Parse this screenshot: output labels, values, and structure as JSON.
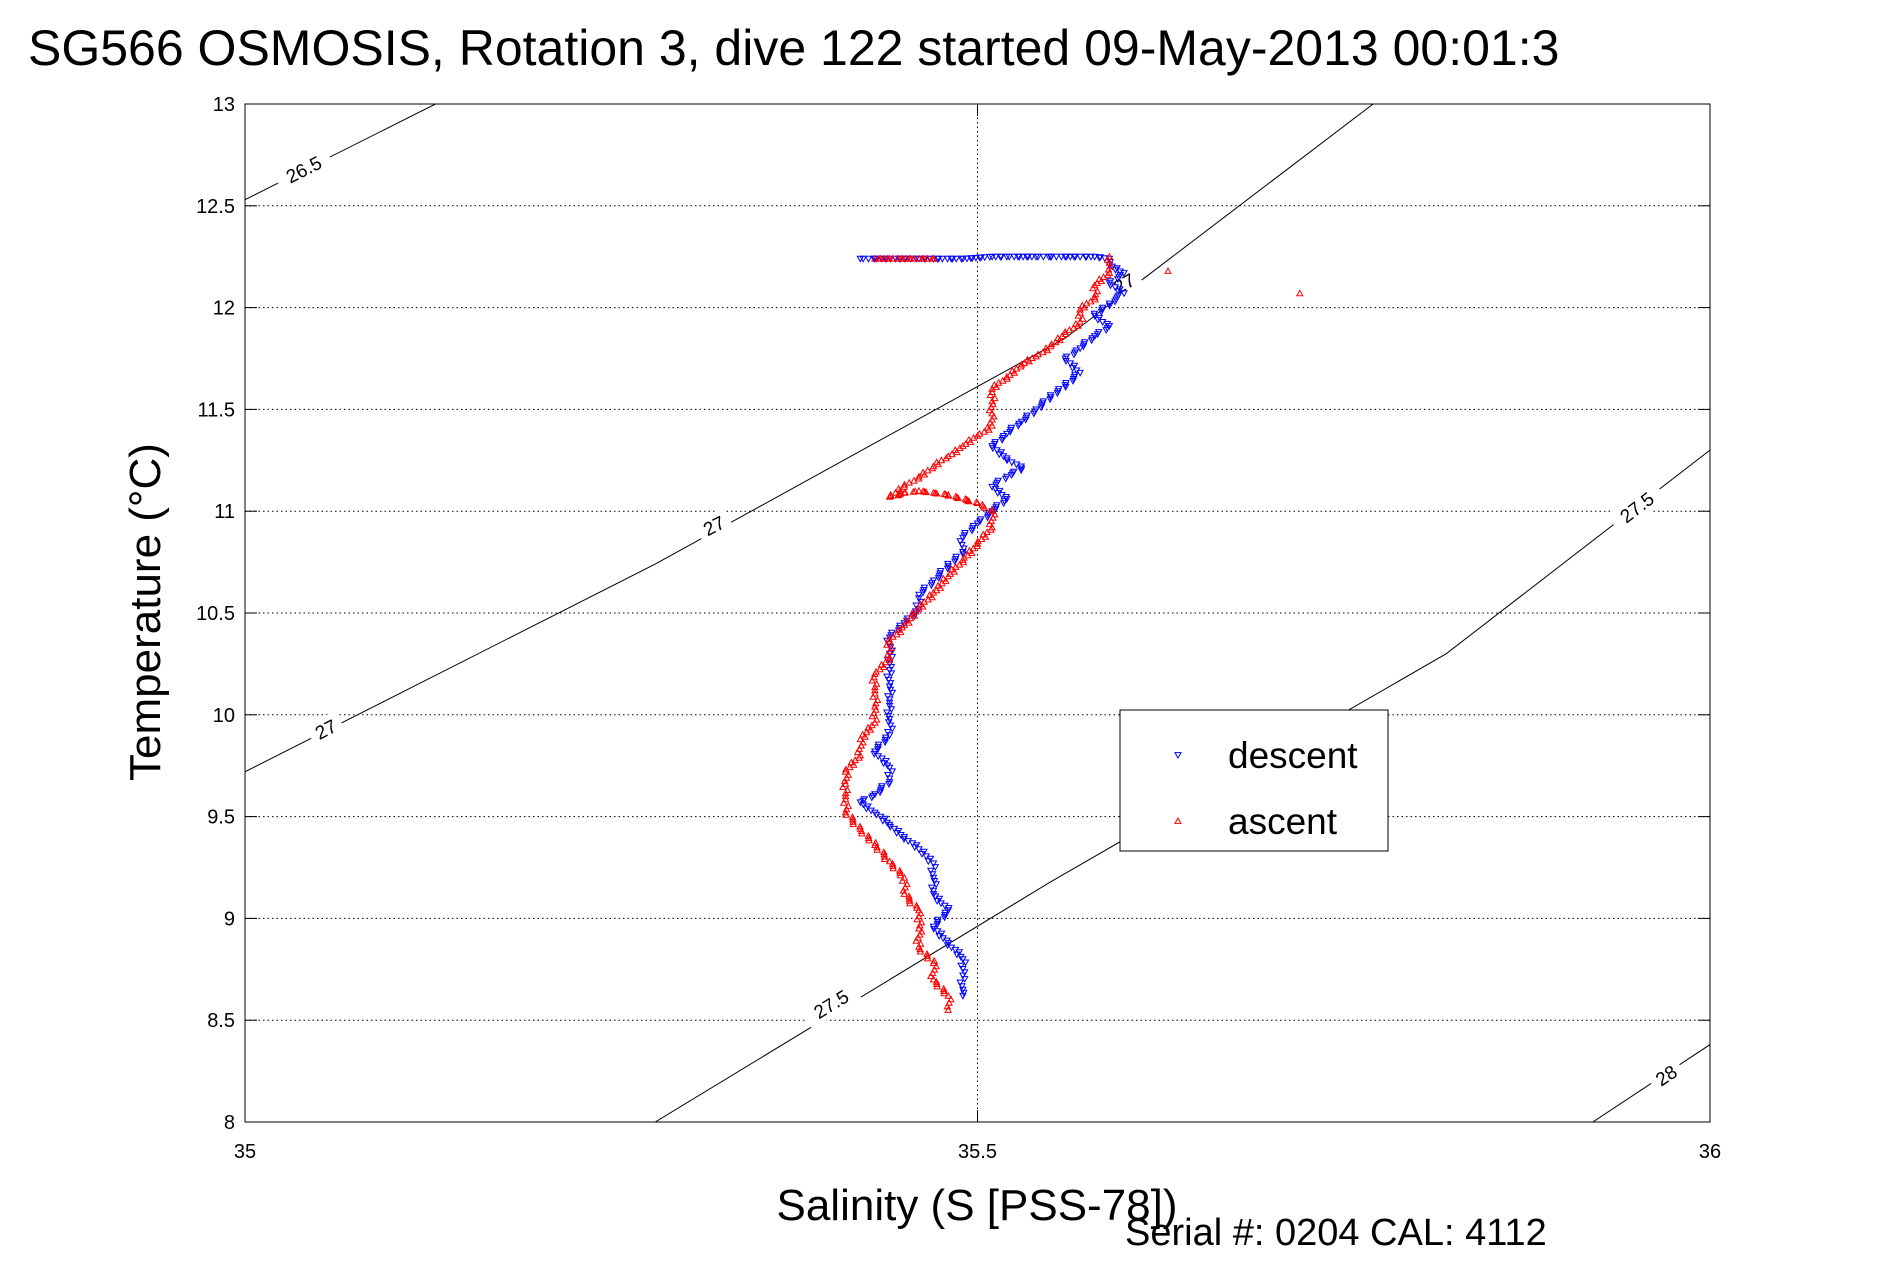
{
  "chart_data": {
    "type": "scatter",
    "title": "SG566 OSMOSIS, Rotation 3, dive 122 started 09-May-2013 00:01:3",
    "xlabel": "Salinity (S [PSS-78])",
    "ylabel": "Temperature (°C)",
    "footer": "Serial #: 0204  CAL: 4112",
    "xlim": [
      35,
      36
    ],
    "ylim": [
      8,
      13
    ],
    "x_ticks": [
      35,
      35.5,
      36
    ],
    "x_tick_labels": [
      "35",
      "35.5",
      "36"
    ],
    "y_ticks": [
      8,
      8.5,
      9,
      9.5,
      10,
      10.5,
      11,
      11.5,
      12,
      12.5,
      13
    ],
    "y_tick_labels": [
      "8",
      "8.5",
      "9",
      "9.5",
      "10",
      "10.5",
      "11",
      "11.5",
      "12",
      "12.5",
      "13"
    ],
    "grid": true,
    "legend_position": "center-right",
    "legend": [
      {
        "label": "descent",
        "marker": "triangle-down",
        "color": "#0000ff"
      },
      {
        "label": "ascent",
        "marker": "triangle-up",
        "color": "#ff0000"
      }
    ],
    "density_contours": [
      {
        "level": 26.5,
        "label": "26.5",
        "points": [
          [
            35.0,
            12.53
          ],
          [
            35.13,
            13.0
          ]
        ],
        "label_at": [
          [
            35.04,
            12.68
          ]
        ]
      },
      {
        "level": 27,
        "label": "27",
        "points": [
          [
            35.0,
            9.72
          ],
          [
            35.28,
            10.74
          ],
          [
            35.56,
            11.85
          ],
          [
            35.77,
            13.0
          ]
        ],
        "label_at": [
          [
            35.055,
            9.93
          ],
          [
            35.32,
            10.93
          ],
          [
            35.6,
            12.12
          ]
        ]
      },
      {
        "level": 27.5,
        "label": "27.5",
        "points": [
          [
            35.28,
            8.0
          ],
          [
            35.55,
            9.18
          ],
          [
            35.82,
            10.3
          ],
          [
            36.0,
            11.3
          ]
        ],
        "label_at": [
          [
            35.4,
            8.58
          ],
          [
            35.95,
            11.02
          ]
        ]
      },
      {
        "level": 28,
        "label": "28",
        "points": [
          [
            35.92,
            8.0
          ],
          [
            36.0,
            8.38
          ]
        ],
        "label_at": [
          [
            35.97,
            8.23
          ]
        ]
      }
    ],
    "series": [
      {
        "name": "descent",
        "color": "#0000ff",
        "marker": "triangle-down",
        "points": [
          [
            35.42,
            12.24
          ],
          [
            35.43,
            12.24
          ],
          [
            35.45,
            12.24
          ],
          [
            35.46,
            12.24
          ],
          [
            35.47,
            12.24
          ],
          [
            35.49,
            12.24
          ],
          [
            35.51,
            12.25
          ],
          [
            35.52,
            12.25
          ],
          [
            35.54,
            12.25
          ],
          [
            35.55,
            12.25
          ],
          [
            35.57,
            12.25
          ],
          [
            35.58,
            12.25
          ],
          [
            35.59,
            12.24
          ],
          [
            35.59,
            12.21
          ],
          [
            35.6,
            12.17
          ],
          [
            35.59,
            12.12
          ],
          [
            35.6,
            12.07
          ],
          [
            35.59,
            12.02
          ],
          [
            35.58,
            11.96
          ],
          [
            35.59,
            11.91
          ],
          [
            35.58,
            11.86
          ],
          [
            35.57,
            11.8
          ],
          [
            35.56,
            11.75
          ],
          [
            35.57,
            11.68
          ],
          [
            35.56,
            11.62
          ],
          [
            35.55,
            11.56
          ],
          [
            35.54,
            11.5
          ],
          [
            35.53,
            11.44
          ],
          [
            35.52,
            11.38
          ],
          [
            35.51,
            11.32
          ],
          [
            35.52,
            11.26
          ],
          [
            35.53,
            11.21
          ],
          [
            35.52,
            11.17
          ],
          [
            35.51,
            11.12
          ],
          [
            35.52,
            11.06
          ],
          [
            35.51,
            11.0
          ],
          [
            35.5,
            10.94
          ],
          [
            35.49,
            10.87
          ],
          [
            35.49,
            10.8
          ],
          [
            35.48,
            10.73
          ],
          [
            35.47,
            10.66
          ],
          [
            35.46,
            10.59
          ],
          [
            35.46,
            10.52
          ],
          [
            35.45,
            10.45
          ],
          [
            35.44,
            10.38
          ],
          [
            35.44,
            10.3
          ],
          [
            35.44,
            10.22
          ],
          [
            35.44,
            10.14
          ],
          [
            35.44,
            10.06
          ],
          [
            35.44,
            9.98
          ],
          [
            35.44,
            9.9
          ],
          [
            35.43,
            9.82
          ],
          [
            35.44,
            9.74
          ],
          [
            35.44,
            9.67
          ],
          [
            35.43,
            9.61
          ],
          [
            35.42,
            9.57
          ],
          [
            35.43,
            9.52
          ],
          [
            35.44,
            9.46
          ],
          [
            35.45,
            9.4
          ],
          [
            35.46,
            9.34
          ],
          [
            35.47,
            9.27
          ],
          [
            35.47,
            9.2
          ],
          [
            35.47,
            9.12
          ],
          [
            35.48,
            9.04
          ],
          [
            35.47,
            8.96
          ],
          [
            35.48,
            8.88
          ],
          [
            35.49,
            8.8
          ],
          [
            35.49,
            8.72
          ],
          [
            35.49,
            8.65
          ],
          [
            35.49,
            8.62
          ]
        ]
      },
      {
        "name": "ascent",
        "color": "#ff0000",
        "marker": "triangle-up",
        "points": [
          [
            35.48,
            8.55
          ],
          [
            35.48,
            8.62
          ],
          [
            35.47,
            8.7
          ],
          [
            35.47,
            8.78
          ],
          [
            35.46,
            8.86
          ],
          [
            35.46,
            8.95
          ],
          [
            35.46,
            9.04
          ],
          [
            35.45,
            9.12
          ],
          [
            35.45,
            9.2
          ],
          [
            35.44,
            9.28
          ],
          [
            35.43,
            9.36
          ],
          [
            35.42,
            9.44
          ],
          [
            35.41,
            9.52
          ],
          [
            35.41,
            9.6
          ],
          [
            35.41,
            9.66
          ],
          [
            35.41,
            9.72
          ],
          [
            35.42,
            9.8
          ],
          [
            35.42,
            9.88
          ],
          [
            35.43,
            9.96
          ],
          [
            35.43,
            10.04
          ],
          [
            35.43,
            10.12
          ],
          [
            35.43,
            10.2
          ],
          [
            35.44,
            10.28
          ],
          [
            35.44,
            10.36
          ],
          [
            35.45,
            10.44
          ],
          [
            35.46,
            10.52
          ],
          [
            35.47,
            10.6
          ],
          [
            35.48,
            10.68
          ],
          [
            35.49,
            10.76
          ],
          [
            35.5,
            10.84
          ],
          [
            35.51,
            10.92
          ],
          [
            35.51,
            11.0
          ],
          [
            35.5,
            11.04
          ],
          [
            35.48,
            11.08
          ],
          [
            35.46,
            11.1
          ],
          [
            35.45,
            11.09
          ],
          [
            35.44,
            11.07
          ],
          [
            35.45,
            11.12
          ],
          [
            35.46,
            11.17
          ],
          [
            35.47,
            11.22
          ],
          [
            35.48,
            11.27
          ],
          [
            35.49,
            11.32
          ],
          [
            35.5,
            11.37
          ],
          [
            35.51,
            11.42
          ],
          [
            35.51,
            11.48
          ],
          [
            35.51,
            11.54
          ],
          [
            35.51,
            11.6
          ],
          [
            35.52,
            11.66
          ],
          [
            35.53,
            11.72
          ],
          [
            35.54,
            11.76
          ],
          [
            35.55,
            11.81
          ],
          [
            35.56,
            11.87
          ],
          [
            35.57,
            11.93
          ],
          [
            35.57,
            11.99
          ],
          [
            35.58,
            12.05
          ],
          [
            35.58,
            12.11
          ],
          [
            35.59,
            12.17
          ],
          [
            35.59,
            12.22
          ],
          [
            35.59,
            12.25
          ],
          [
            35.43,
            12.24
          ],
          [
            35.47,
            12.24
          ],
          [
            35.63,
            12.18
          ],
          [
            35.72,
            12.07
          ]
        ]
      }
    ]
  }
}
